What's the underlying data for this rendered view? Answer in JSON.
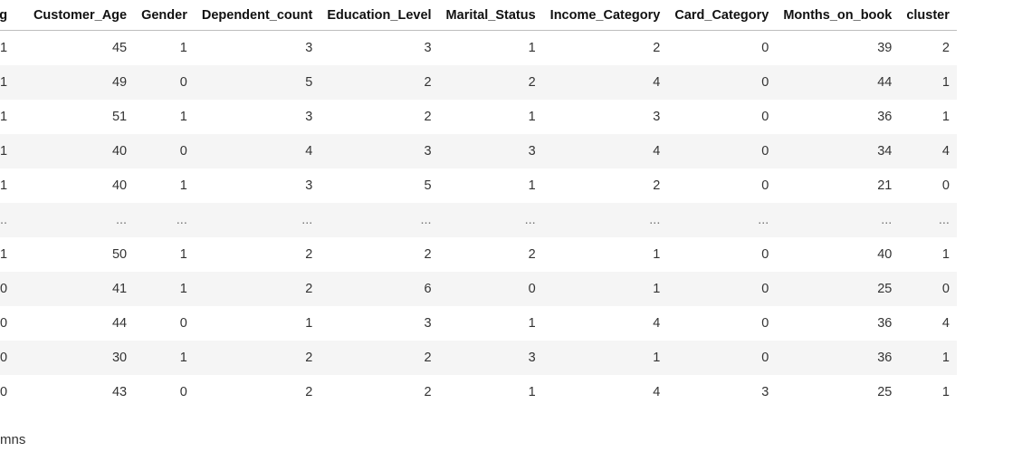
{
  "table": {
    "columns": [
      "g",
      "Customer_Age",
      "Gender",
      "Dependent_count",
      "Education_Level",
      "Marital_Status",
      "Income_Category",
      "Card_Category",
      "Months_on_book",
      "cluster"
    ],
    "rows": [
      [
        "1",
        "45",
        "1",
        "3",
        "3",
        "1",
        "2",
        "0",
        "39",
        "2"
      ],
      [
        "1",
        "49",
        "0",
        "5",
        "2",
        "2",
        "4",
        "0",
        "44",
        "1"
      ],
      [
        "1",
        "51",
        "1",
        "3",
        "2",
        "1",
        "3",
        "0",
        "36",
        "1"
      ],
      [
        "1",
        "40",
        "0",
        "4",
        "3",
        "3",
        "4",
        "0",
        "34",
        "4"
      ],
      [
        "1",
        "40",
        "1",
        "3",
        "5",
        "1",
        "2",
        "0",
        "21",
        "0"
      ],
      [
        "...",
        "...",
        "...",
        "...",
        "...",
        "...",
        "...",
        "...",
        "...",
        "..."
      ],
      [
        "1",
        "50",
        "1",
        "2",
        "2",
        "2",
        "1",
        "0",
        "40",
        "1"
      ],
      [
        "0",
        "41",
        "1",
        "2",
        "6",
        "0",
        "1",
        "0",
        "25",
        "0"
      ],
      [
        "0",
        "44",
        "0",
        "1",
        "3",
        "1",
        "4",
        "0",
        "36",
        "4"
      ],
      [
        "0",
        "30",
        "1",
        "2",
        "2",
        "3",
        "1",
        "0",
        "36",
        "1"
      ],
      [
        "0",
        "43",
        "0",
        "2",
        "2",
        "1",
        "4",
        "3",
        "25",
        "1"
      ]
    ]
  },
  "footer": {
    "text": "mns"
  }
}
